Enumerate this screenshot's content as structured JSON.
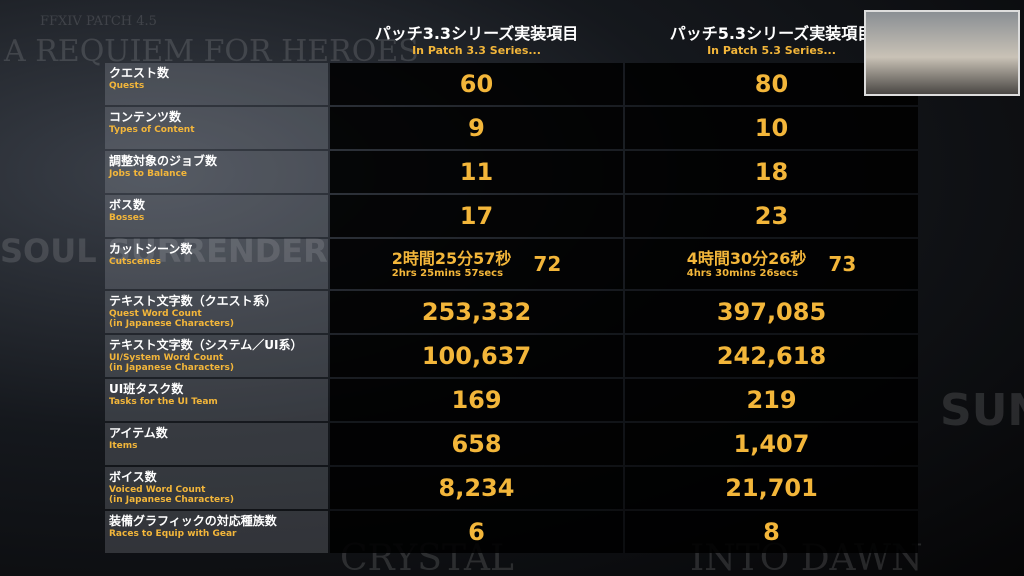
{
  "background_titles": [
    "FFXIV PATCH 4.5",
    "A REQUIEM FOR HEROES",
    "SOUL SURRENDER",
    "CRYSTAL",
    "INTO DAWN",
    "SUN"
  ],
  "header": {
    "columns": [
      "パッチ3.3シリーズ実装項目",
      "パッチ5.3シリーズ実装項目"
    ],
    "subtitles": [
      "In Patch 3.3 Series...",
      "In Patch 5.3 Series..."
    ]
  },
  "table": {
    "rows": [
      {
        "label": "クエスト数",
        "sublabel": [
          "Quests"
        ],
        "values": [
          "60",
          "80"
        ]
      },
      {
        "label": "コンテンツ数",
        "sublabel": [
          "Types of Content"
        ],
        "values": [
          "9",
          "10"
        ]
      },
      {
        "label": "調整対象のジョブ数",
        "sublabel": [
          "Jobs to Balance"
        ],
        "values": [
          "11",
          "18"
        ]
      },
      {
        "label": "ボス数",
        "sublabel": [
          "Bosses"
        ],
        "values": [
          "17",
          "23"
        ]
      },
      {
        "label": "カットシーン数",
        "sublabel": [
          "Cutscenes"
        ],
        "values": [
          {
            "time": "2時間25分57秒",
            "time_en": "2hrs 25mins 57secs",
            "count": "72"
          },
          {
            "time": "4時間30分26秒",
            "time_en": "4hrs 30mins 26secs",
            "count": "73"
          }
        ]
      },
      {
        "label": "テキスト文字数（クエスト系）",
        "sublabel": [
          "Quest Word Count",
          "(in Japanese Characters)"
        ],
        "values": [
          "253,332",
          "397,085"
        ]
      },
      {
        "label": "テキスト文字数（システム／UI系）",
        "sublabel": [
          "UI/System Word Count",
          "(in Japanese Characters)"
        ],
        "values": [
          "100,637",
          "242,618"
        ]
      },
      {
        "label": "UI班タスク数",
        "sublabel": [
          "Tasks for the UI Team"
        ],
        "values": [
          "169",
          "219"
        ]
      },
      {
        "label": "アイテム数",
        "sublabel": [
          "Items"
        ],
        "values": [
          "658",
          "1,407"
        ]
      },
      {
        "label": "ボイス数",
        "sublabel": [
          "Voiced Word Count",
          "(in Japanese Characters)"
        ],
        "values": [
          "8,234",
          "21,701"
        ]
      },
      {
        "label": "装備グラフィックの対応種族数",
        "sublabel": [
          "Races to Equip with Gear"
        ],
        "values": [
          "6",
          "8"
        ]
      }
    ]
  }
}
